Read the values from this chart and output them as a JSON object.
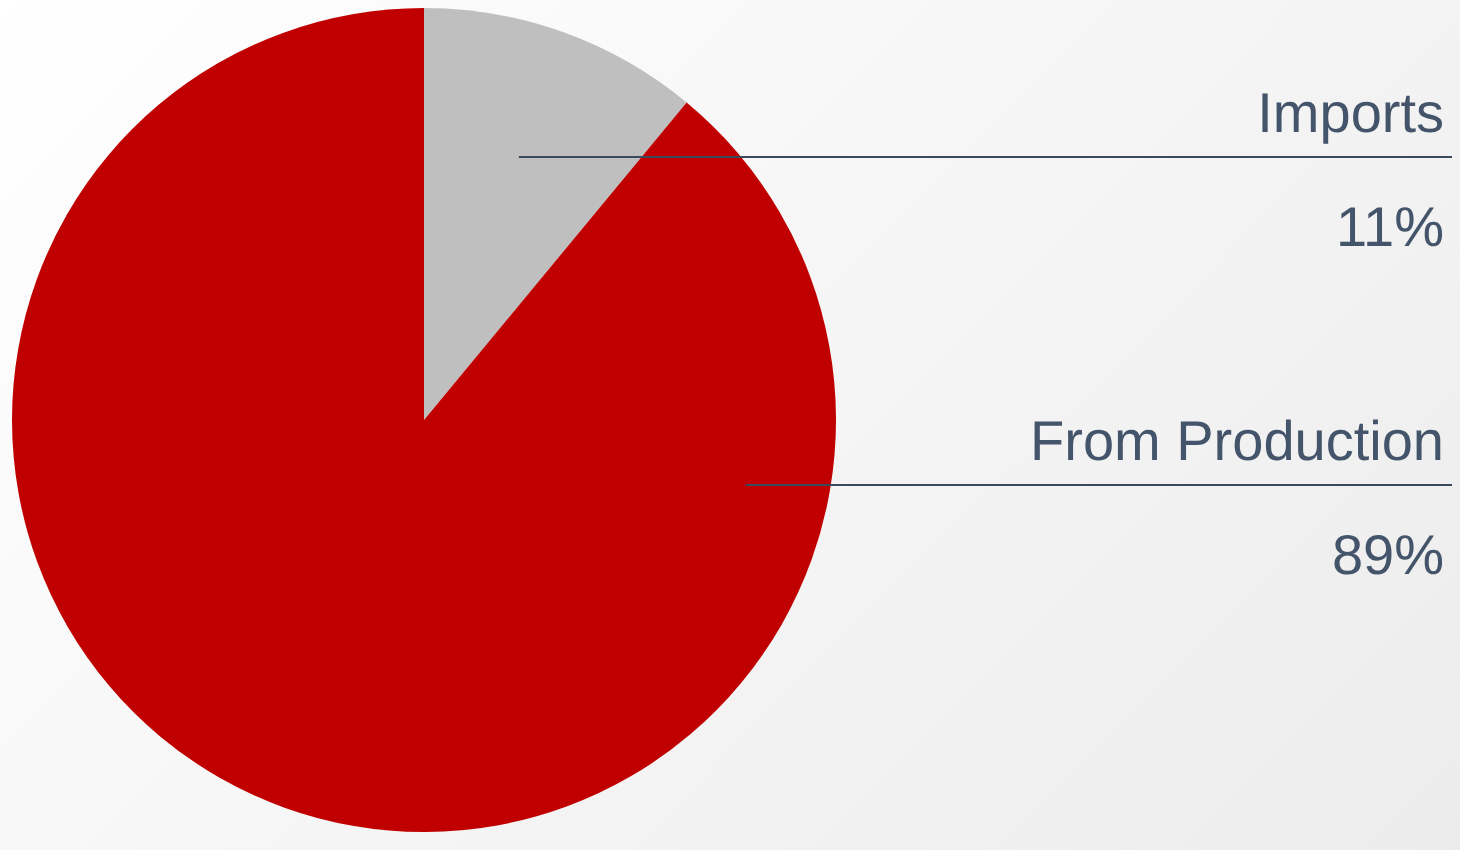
{
  "chart_data": {
    "type": "pie",
    "categories": [
      "Imports",
      "From Production"
    ],
    "values": [
      11,
      89
    ],
    "colors": [
      "#bfbfbf",
      "#c00000"
    ],
    "value_labels": [
      "11%",
      "89%"
    ],
    "legend": false
  }
}
